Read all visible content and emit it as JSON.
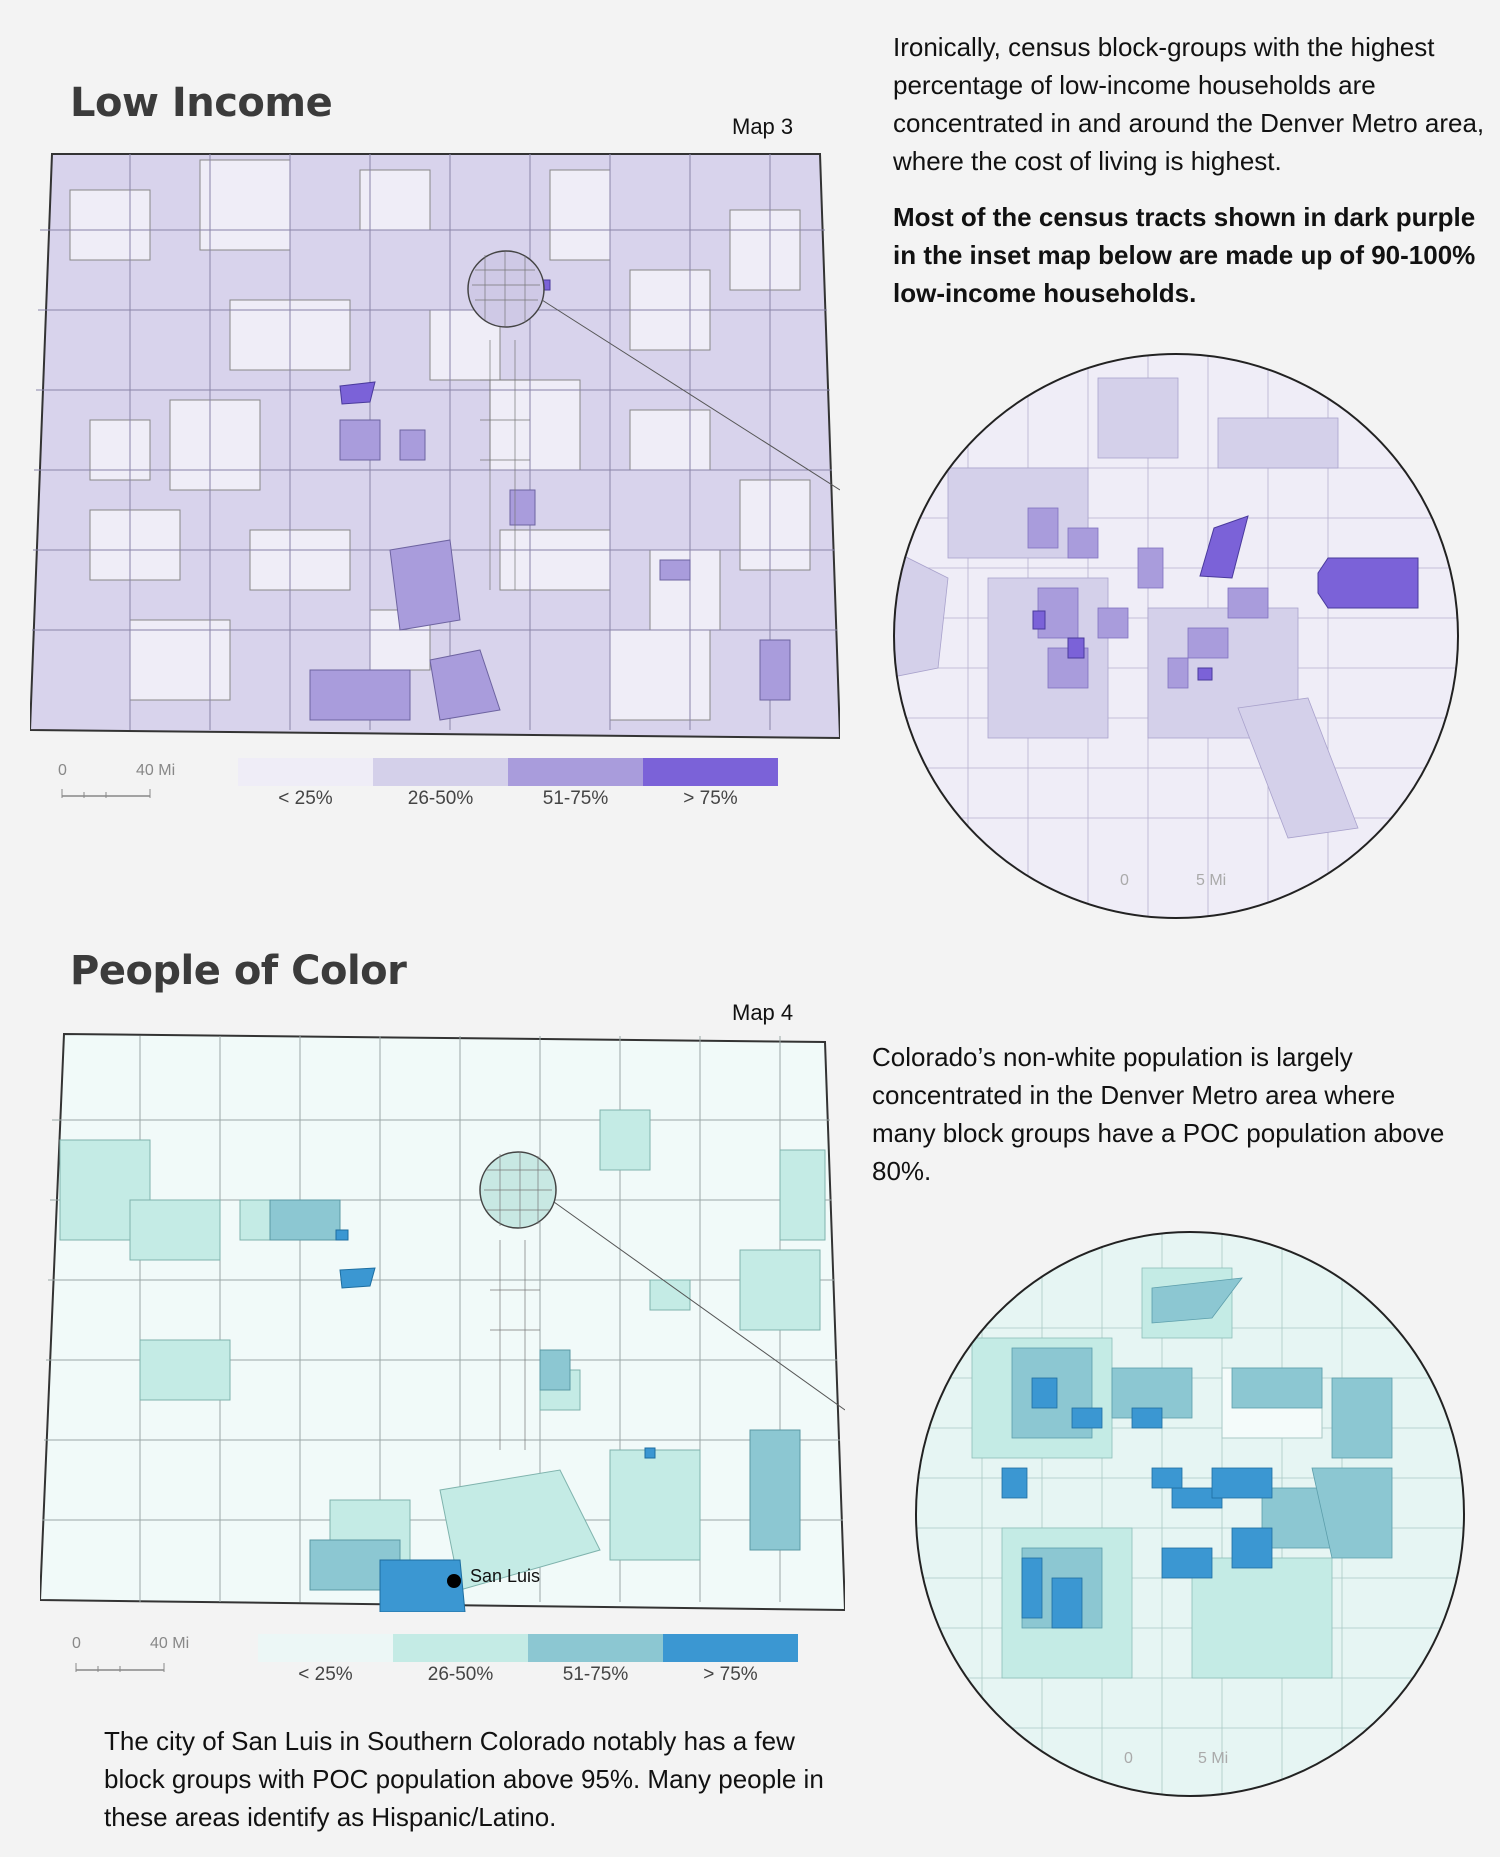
{
  "low_income": {
    "heading": "Low Income",
    "map_label": "Map 3",
    "text_regular": "Ironically, census block-groups with the highest percentage of low-income households are concentrated in and around the Denver Metro area, where the cost of living is highest.",
    "text_bold": "Most of the census tracts shown in dark purple in the inset map below are made up of 90-100% low-income households.",
    "scale": {
      "zero": "0",
      "distance": "40 Mi"
    },
    "inset_scale": {
      "zero": "0",
      "distance": "5 Mi"
    },
    "legend": {
      "labels": [
        "< 25%",
        "26-50%",
        "51-75%",
        "> 75%"
      ],
      "colors": [
        "#efedf7",
        "#d4d0ea",
        "#a99cdc",
        "#7b62d8"
      ]
    }
  },
  "poc": {
    "heading": "People of Color",
    "map_label": "Map 4",
    "text": "Colorado’s non-white population is largely concentrated in the Denver Metro area where many block groups have a POC population above 80%.",
    "place_label": "San Luis",
    "scale": {
      "zero": "0",
      "distance": "40 Mi"
    },
    "inset_scale": {
      "zero": "0",
      "distance": "5 Mi"
    },
    "legend": {
      "labels": [
        "< 25%",
        "26-50%",
        "51-75%",
        "> 75%"
      ],
      "colors": [
        "#ecf7f6",
        "#c4ebe5",
        "#8cc7d2",
        "#3b97d2"
      ]
    },
    "footer_text": "The city of San Luis in Southern Colorado notably has a few block groups with POC population above 95%. Many people in these areas identify as Hispanic/Latino."
  }
}
